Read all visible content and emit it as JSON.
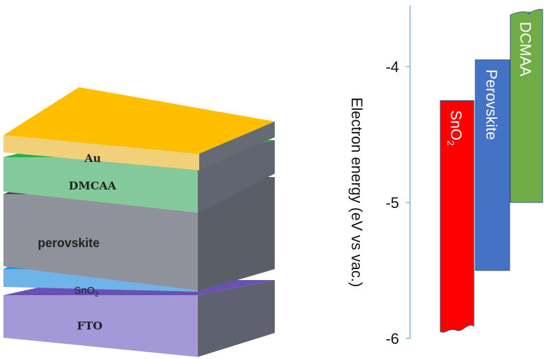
{
  "stack": {
    "layers": [
      {
        "id": "au",
        "label": "Au",
        "top": "#ffbf00",
        "front": "#f2d07a",
        "side": "#666a73"
      },
      {
        "id": "dmcaa",
        "label": "DMCAA",
        "top": "#22b14c",
        "front": "#83c99a",
        "side": "#5f6670"
      },
      {
        "id": "perovskite",
        "label": "perovskite",
        "top": "#4a4d55",
        "front": "#8f929b",
        "side": "#5a5e66"
      },
      {
        "id": "sno2",
        "label": "SnO",
        "label_sub": "2",
        "top": "#1f8fe0",
        "front": "#6eb4e8",
        "side": "#5a6470"
      },
      {
        "id": "fto",
        "label": "FTO",
        "top": "#6a4fb5",
        "front": "#a499d8",
        "side": "#5d6170"
      }
    ]
  },
  "energy_diagram": {
    "ylabel": "Electron energy (eV vs vac.)",
    "yticks": [
      "-4",
      "-5",
      "-6"
    ],
    "tick_values": [
      -4,
      -5,
      -6
    ],
    "ylim": [
      -6,
      -3.55
    ],
    "bands": [
      {
        "name": "SnO",
        "name_sub": "2",
        "top": -4.25,
        "bottom": -5.95,
        "color": "#ff0000"
      },
      {
        "name": "Perovskite",
        "top": -3.95,
        "bottom": -5.5,
        "color": "#4472c4"
      },
      {
        "name": "DCMAA",
        "top": -3.6,
        "bottom": -5.0,
        "color": "#70ad47"
      }
    ]
  }
}
